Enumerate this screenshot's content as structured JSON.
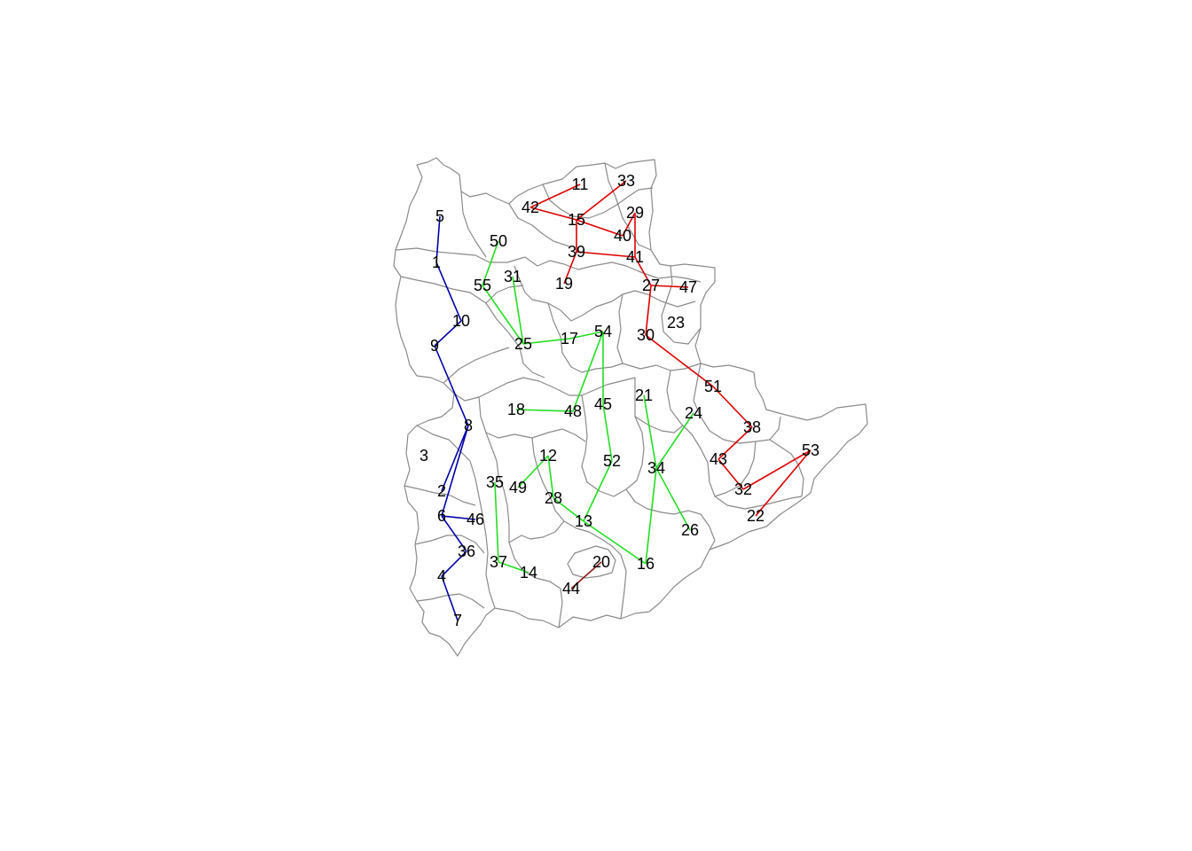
{
  "colors": {
    "boundary": "#8a8a8a",
    "background": "#ffffff",
    "label": "#000000"
  },
  "nodes": [
    {
      "id": "1"
    },
    {
      "id": "2"
    },
    {
      "id": "3"
    },
    {
      "id": "4"
    },
    {
      "id": "5"
    },
    {
      "id": "6"
    },
    {
      "id": "7"
    },
    {
      "id": "8"
    },
    {
      "id": "9"
    },
    {
      "id": "10"
    },
    {
      "id": "11"
    },
    {
      "id": "12"
    },
    {
      "id": "13"
    },
    {
      "id": "14"
    },
    {
      "id": "15"
    },
    {
      "id": "16"
    },
    {
      "id": "17"
    },
    {
      "id": "18"
    },
    {
      "id": "19"
    },
    {
      "id": "20"
    },
    {
      "id": "21"
    },
    {
      "id": "22"
    },
    {
      "id": "23"
    },
    {
      "id": "24"
    },
    {
      "id": "25"
    },
    {
      "id": "26"
    },
    {
      "id": "27"
    },
    {
      "id": "28"
    },
    {
      "id": "29"
    },
    {
      "id": "30"
    },
    {
      "id": "31"
    },
    {
      "id": "32"
    },
    {
      "id": "33"
    },
    {
      "id": "34"
    },
    {
      "id": "35"
    },
    {
      "id": "36"
    },
    {
      "id": "37"
    },
    {
      "id": "38"
    },
    {
      "id": "39"
    },
    {
      "id": "40"
    },
    {
      "id": "41"
    },
    {
      "id": "42"
    },
    {
      "id": "43"
    },
    {
      "id": "44"
    },
    {
      "id": "45"
    },
    {
      "id": "46"
    },
    {
      "id": "47"
    },
    {
      "id": "48"
    },
    {
      "id": "49"
    },
    {
      "id": "50"
    },
    {
      "id": "51"
    },
    {
      "id": "52"
    },
    {
      "id": "53"
    },
    {
      "id": "54"
    },
    {
      "id": "55"
    }
  ],
  "edge_groups": [
    {
      "group": "blue",
      "color": "#0000aa",
      "edges": [
        [
          "5",
          "1"
        ],
        [
          "1",
          "10"
        ],
        [
          "10",
          "9"
        ],
        [
          "9",
          "8"
        ],
        [
          "8",
          "2"
        ],
        [
          "8",
          "6"
        ],
        [
          "6",
          "46"
        ],
        [
          "6",
          "36"
        ],
        [
          "36",
          "4"
        ],
        [
          "4",
          "7"
        ]
      ]
    },
    {
      "group": "green",
      "color": "#22dd22",
      "edges": [
        [
          "50",
          "55"
        ],
        [
          "55",
          "25"
        ],
        [
          "31",
          "25"
        ],
        [
          "25",
          "17"
        ],
        [
          "17",
          "54"
        ],
        [
          "54",
          "48"
        ],
        [
          "54",
          "45"
        ],
        [
          "18",
          "48"
        ],
        [
          "45",
          "52"
        ],
        [
          "52",
          "13"
        ],
        [
          "12",
          "49"
        ],
        [
          "12",
          "28"
        ],
        [
          "28",
          "13"
        ],
        [
          "35",
          "37"
        ],
        [
          "37",
          "14"
        ],
        [
          "13",
          "16"
        ],
        [
          "21",
          "34"
        ],
        [
          "34",
          "16"
        ],
        [
          "24",
          "34"
        ],
        [
          "34",
          "26"
        ]
      ]
    },
    {
      "group": "red",
      "color": "#dd0000",
      "edges": [
        [
          "42",
          "11"
        ],
        [
          "42",
          "15"
        ],
        [
          "15",
          "33"
        ],
        [
          "15",
          "40"
        ],
        [
          "15",
          "39"
        ],
        [
          "29",
          "40"
        ],
        [
          "29",
          "41"
        ],
        [
          "39",
          "41"
        ],
        [
          "39",
          "19"
        ],
        [
          "41",
          "27"
        ],
        [
          "27",
          "47"
        ],
        [
          "27",
          "30"
        ],
        [
          "30",
          "51"
        ],
        [
          "51",
          "38"
        ],
        [
          "38",
          "43"
        ],
        [
          "43",
          "32"
        ],
        [
          "32",
          "53"
        ],
        [
          "53",
          "22"
        ]
      ]
    },
    {
      "group": "dark-red",
      "color": "#8b1a1a",
      "edges": [
        [
          "20",
          "44"
        ]
      ]
    }
  ]
}
